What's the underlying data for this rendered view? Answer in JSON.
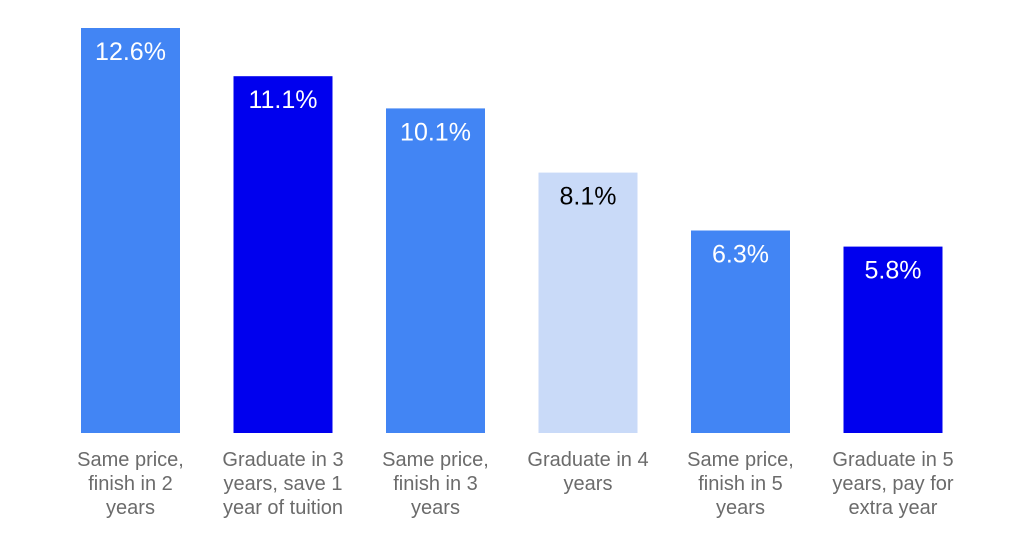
{
  "chart_data": {
    "type": "bar",
    "title": "",
    "xlabel": "",
    "ylabel": "",
    "ylim": [
      0,
      12.6
    ],
    "grid": false,
    "legend": "none",
    "categories": [
      [
        "Same price,",
        "finish in 2",
        "years"
      ],
      [
        "Graduate in 3",
        "years, save 1",
        "year of tuition"
      ],
      [
        "Same price,",
        "finish in 3",
        "years"
      ],
      [
        "Graduate in 4",
        "years"
      ],
      [
        "Same price,",
        "finish in 5",
        "years"
      ],
      [
        "Graduate in 5",
        "years, pay for",
        "extra year"
      ]
    ],
    "values": [
      12.6,
      11.1,
      10.1,
      8.1,
      6.3,
      5.8
    ],
    "value_labels": [
      "12.6%",
      "11.1%",
      "10.1%",
      "8.1%",
      "6.3%",
      "5.8%"
    ],
    "bar_colors": [
      "#4285f4",
      "#0000ee",
      "#4285f4",
      "#c9daf8",
      "#4285f4",
      "#0000ee"
    ],
    "label_colors": [
      "#ffffff",
      "#ffffff",
      "#ffffff",
      "#000000",
      "#ffffff",
      "#ffffff"
    ]
  }
}
